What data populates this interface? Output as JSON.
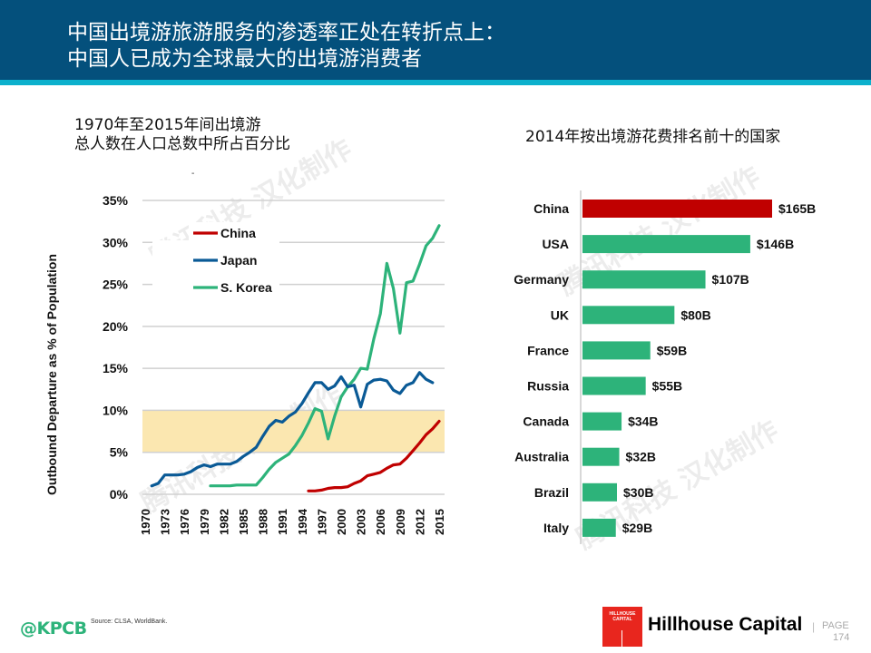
{
  "header": {
    "title_line1": "中国出境游旅游服务的渗透率正处在转折点上：",
    "title_line2": "中国人已成为全球最大的出境游消费者"
  },
  "left_panel": {
    "subtitle_line1": "1970年至2015年间出境游",
    "subtitle_line2": "总人数在人口总数中所占百分比",
    "stray_mark": "-"
  },
  "right_panel": {
    "subtitle": "2014年按出境游花费排名前十的国家"
  },
  "chart_data": [
    {
      "type": "line",
      "title": "1970年至2015年间出境游总人数在人口总数中所占百分比",
      "xlabel": "",
      "ylabel": "Outbound Departure as % of Population",
      "xlim": [
        1970,
        2015
      ],
      "ylim": [
        0,
        35
      ],
      "yticks": [
        "0%",
        "5%",
        "10%",
        "15%",
        "20%",
        "25%",
        "30%",
        "35%"
      ],
      "ytick_values": [
        0,
        5,
        10,
        15,
        20,
        25,
        30,
        35
      ],
      "xticks": [
        "1970",
        "1973",
        "1976",
        "1979",
        "1982",
        "1985",
        "1988",
        "1991",
        "1994",
        "1997",
        "2000",
        "2003",
        "2006",
        "2009",
        "2012",
        "2015"
      ],
      "xtick_values": [
        1970,
        1973,
        1976,
        1979,
        1982,
        1985,
        1988,
        1991,
        1994,
        1997,
        2000,
        2003,
        2006,
        2009,
        2012,
        2015
      ],
      "grid": true,
      "highlight_band": {
        "from": 5,
        "to": 10,
        "color": "#fbe7b0"
      },
      "legend_position": "top-left",
      "series": [
        {
          "name": "China",
          "color": "#c00000",
          "x": [
            1995,
            1996,
            1997,
            1998,
            1999,
            2000,
            2001,
            2002,
            2003,
            2004,
            2005,
            2006,
            2007,
            2008,
            2009,
            2010,
            2011,
            2012,
            2013,
            2014,
            2015
          ],
          "y": [
            0.4,
            0.4,
            0.5,
            0.7,
            0.8,
            0.8,
            0.9,
            1.3,
            1.6,
            2.2,
            2.4,
            2.6,
            3.1,
            3.5,
            3.6,
            4.3,
            5.2,
            6.1,
            7.1,
            7.8,
            8.7
          ]
        },
        {
          "name": "Japan",
          "color": "#0a5a96",
          "x": [
            1971,
            1972,
            1973,
            1974,
            1975,
            1976,
            1977,
            1978,
            1979,
            1980,
            1981,
            1982,
            1983,
            1984,
            1985,
            1986,
            1987,
            1988,
            1989,
            1990,
            1991,
            1992,
            1993,
            1994,
            1995,
            1996,
            1997,
            1998,
            1999,
            2000,
            2001,
            2002,
            2003,
            2004,
            2005,
            2006,
            2007,
            2008,
            2009,
            2010,
            2011,
            2012,
            2013,
            2014
          ],
          "y": [
            1.0,
            1.3,
            2.3,
            2.3,
            2.3,
            2.4,
            2.7,
            3.2,
            3.5,
            3.3,
            3.6,
            3.6,
            3.6,
            3.9,
            4.5,
            5.0,
            5.6,
            6.9,
            8.1,
            8.8,
            8.6,
            9.3,
            9.8,
            10.8,
            12.1,
            13.3,
            13.3,
            12.5,
            12.9,
            14.0,
            12.8,
            13.0,
            10.4,
            13.1,
            13.6,
            13.7,
            13.5,
            12.4,
            12.0,
            13.0,
            13.3,
            14.5,
            13.7,
            13.3
          ]
        },
        {
          "name": "S. Korea",
          "color": "#2db37a",
          "x": [
            1980,
            1981,
            1982,
            1983,
            1984,
            1985,
            1986,
            1987,
            1988,
            1989,
            1990,
            1991,
            1992,
            1993,
            1994,
            1995,
            1996,
            1997,
            1998,
            1999,
            2000,
            2001,
            2002,
            2003,
            2004,
            2005,
            2006,
            2007,
            2008,
            2009,
            2010,
            2011,
            2012,
            2013,
            2014,
            2015
          ],
          "y": [
            1.0,
            1.0,
            1.0,
            1.0,
            1.1,
            1.1,
            1.1,
            1.1,
            2.0,
            3.0,
            3.8,
            4.3,
            4.8,
            5.8,
            7.0,
            8.5,
            10.2,
            9.9,
            6.6,
            9.3,
            11.6,
            12.8,
            13.7,
            15.0,
            14.9,
            18.5,
            21.5,
            27.5,
            24.5,
            19.2,
            25.2,
            25.4,
            27.4,
            29.6,
            30.5,
            32.0
          ]
        }
      ]
    },
    {
      "type": "bar",
      "orientation": "horizontal",
      "title": "2014年按出境游花费排名前十的国家",
      "categories": [
        "China",
        "USA",
        "Germany",
        "UK",
        "France",
        "Russia",
        "Canada",
        "Australia",
        "Brazil",
        "Italy"
      ],
      "values": [
        165,
        146,
        107,
        80,
        59,
        55,
        34,
        32,
        30,
        29
      ],
      "value_labels": [
        "$165B",
        "$146B",
        "$107B",
        "$80B",
        "$59B",
        "$55B",
        "$34B",
        "$32B",
        "$30B",
        "$29B"
      ],
      "unit": "USD billions",
      "colors": [
        "#c00000",
        "#2db37a",
        "#2db37a",
        "#2db37a",
        "#2db37a",
        "#2db37a",
        "#2db37a",
        "#2db37a",
        "#2db37a",
        "#2db37a"
      ],
      "xlim": [
        0,
        165
      ]
    }
  ],
  "watermark": "腾讯科技 汉化制作",
  "footer": {
    "kpcb": "@KPCB",
    "source": "Source: CLSA, WorldBank.",
    "logo_line1": "HILLHOUSE",
    "logo_line2": "CAPITAL",
    "company": "Hillhouse Capital",
    "separator": "|",
    "page_label": "PAGE",
    "page_number": "174"
  },
  "colors": {
    "header_bg": "#04507c",
    "header_stripe": "#0cb0cc",
    "china": "#c00000",
    "japan": "#0a5a96",
    "korea": "#2db37a",
    "band": "#fbe7b0",
    "hillhouse_red": "#e8261e"
  }
}
